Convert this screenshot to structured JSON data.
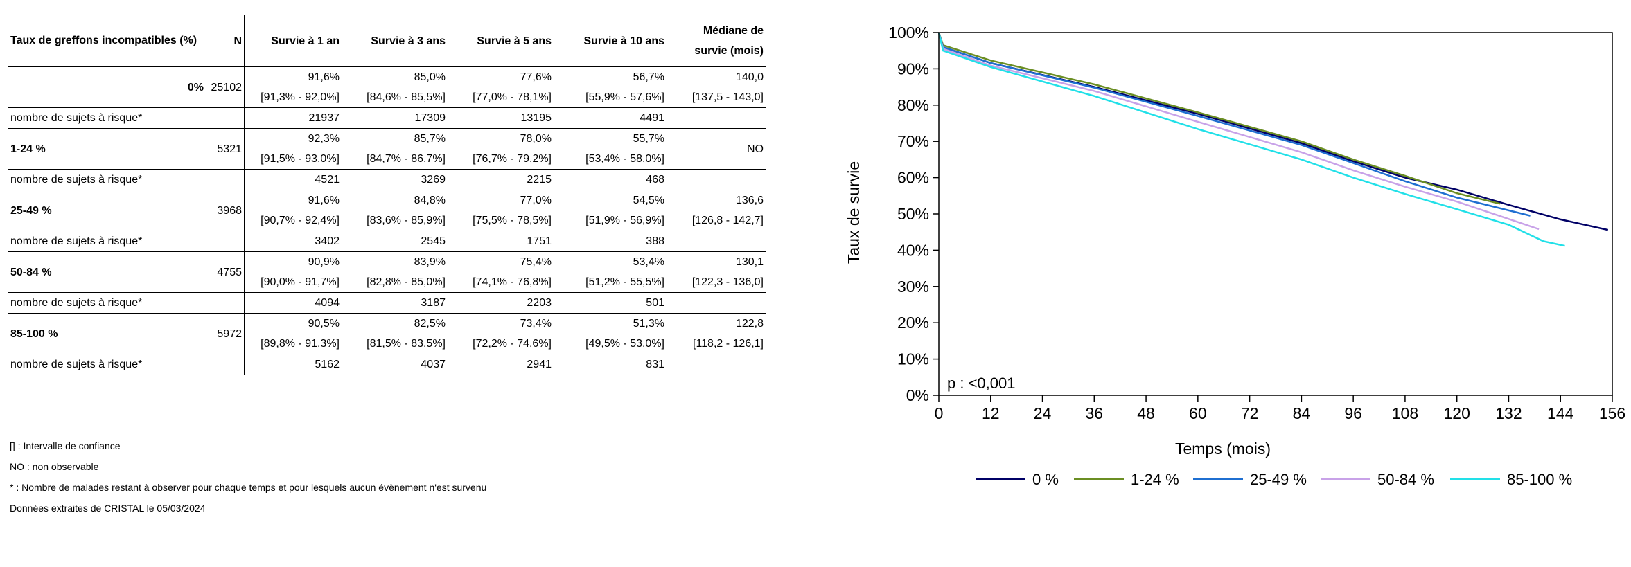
{
  "table": {
    "headers": {
      "group": "Taux de greffons incompatibles (%)",
      "n": "N",
      "s1": "Survie à 1 an",
      "s3": "Survie à 3 ans",
      "s5": "Survie à 5 ans",
      "s10": "Survie à 10 ans",
      "median_l1": "Médiane de",
      "median_l2": "survie (mois)"
    },
    "risk_label": "nombre de sujets à risque*",
    "groups": [
      {
        "label": "0%",
        "n": "25102",
        "s1": "91,6%",
        "s1_ci": "[91,3% - 92,0%]",
        "s3": "85,0%",
        "s3_ci": "[84,6% - 85,5%]",
        "s5": "77,6%",
        "s5_ci": "[77,0% - 78,1%]",
        "s10": "56,7%",
        "s10_ci": "[55,9% - 57,6%]",
        "median": "140,0",
        "median_ci": "[137,5 - 143,0]",
        "risk": [
          "21937",
          "17309",
          "13195",
          "4491"
        ]
      },
      {
        "label": "1-24 %",
        "n": "5321",
        "s1": "92,3%",
        "s1_ci": "[91,5% - 93,0%]",
        "s3": "85,7%",
        "s3_ci": "[84,7% - 86,7%]",
        "s5": "78,0%",
        "s5_ci": "[76,7% - 79,2%]",
        "s10": "55,7%",
        "s10_ci": "[53,4% - 58,0%]",
        "median": "NO",
        "median_ci": "",
        "risk": [
          "4521",
          "3269",
          "2215",
          "468"
        ]
      },
      {
        "label": "25-49 %",
        "n": "3968",
        "s1": "91,6%",
        "s1_ci": "[90,7% - 92,4%]",
        "s3": "84,8%",
        "s3_ci": "[83,6% - 85,9%]",
        "s5": "77,0%",
        "s5_ci": "[75,5% - 78,5%]",
        "s10": "54,5%",
        "s10_ci": "[51,9% - 56,9%]",
        "median": "136,6",
        "median_ci": "[126,8 - 142,7]",
        "risk": [
          "3402",
          "2545",
          "1751",
          "388"
        ]
      },
      {
        "label": "50-84 %",
        "n": "4755",
        "s1": "90,9%",
        "s1_ci": "[90,0% - 91,7%]",
        "s3": "83,9%",
        "s3_ci": "[82,8% - 85,0%]",
        "s5": "75,4%",
        "s5_ci": "[74,1% - 76,8%]",
        "s10": "53,4%",
        "s10_ci": "[51,2% - 55,5%]",
        "median": "130,1",
        "median_ci": "[122,3 - 136,0]",
        "risk": [
          "4094",
          "3187",
          "2203",
          "501"
        ]
      },
      {
        "label": "85-100 %",
        "n": "5972",
        "s1": "90,5%",
        "s1_ci": "[89,8% - 91,3%]",
        "s3": "82,5%",
        "s3_ci": "[81,5% - 83,5%]",
        "s5": "73,4%",
        "s5_ci": "[72,2% - 74,6%]",
        "s10": "51,3%",
        "s10_ci": "[49,5% - 53,0%]",
        "median": "122,8",
        "median_ci": "[118,2 - 126,1]",
        "risk": [
          "5162",
          "4037",
          "2941",
          "831"
        ]
      }
    ]
  },
  "footnotes": [
    "[] : Intervalle de confiance",
    "NO : non observable",
    "* : Nombre de malades restant à observer pour chaque temps et pour lesquels aucun évènement n'est survenu",
    "Données extraites de CRISTAL le 05/03/2024"
  ],
  "chart_data": {
    "type": "line",
    "xlabel": "Temps (mois)",
    "ylabel": "Taux de survie",
    "xlim": [
      0,
      156
    ],
    "ylim": [
      0,
      100
    ],
    "x_ticks": [
      0,
      12,
      24,
      36,
      48,
      60,
      72,
      84,
      96,
      108,
      120,
      132,
      144,
      156
    ],
    "y_ticks": [
      0,
      10,
      20,
      30,
      40,
      50,
      60,
      70,
      80,
      90,
      100
    ],
    "y_tick_labels": [
      "0%",
      "10%",
      "20%",
      "30%",
      "40%",
      "50%",
      "60%",
      "70%",
      "80%",
      "90%",
      "100%"
    ],
    "annotation": "p : <0,001",
    "legend_position": "bottom",
    "series": [
      {
        "name": "0 %",
        "color": "#000066",
        "x": [
          0,
          1,
          12,
          36,
          60,
          84,
          96,
          108,
          120,
          132,
          144,
          155
        ],
        "y": [
          100,
          96,
          91.6,
          85.0,
          77.6,
          69.5,
          64.5,
          60.0,
          56.7,
          52.5,
          48.5,
          45.6
        ]
      },
      {
        "name": "1-24 %",
        "color": "#6b8e23",
        "x": [
          0,
          1,
          12,
          36,
          60,
          84,
          96,
          108,
          120,
          130
        ],
        "y": [
          100,
          96.5,
          92.3,
          85.7,
          78.0,
          70.0,
          65.0,
          60.5,
          55.7,
          52.8
        ]
      },
      {
        "name": "25-49 %",
        "color": "#1f6fd1",
        "x": [
          0,
          1,
          12,
          36,
          60,
          84,
          96,
          108,
          120,
          137
        ],
        "y": [
          100,
          96,
          91.6,
          84.8,
          77.0,
          69.0,
          64.0,
          59.0,
          54.5,
          49.5
        ]
      },
      {
        "name": "50-84 %",
        "color": "#c8a2e8",
        "x": [
          0,
          1,
          12,
          36,
          60,
          84,
          96,
          108,
          120,
          136,
          139
        ],
        "y": [
          100,
          95.5,
          90.9,
          83.9,
          75.4,
          67.0,
          62.0,
          57.5,
          53.4,
          47.0,
          45.8
        ]
      },
      {
        "name": "85-100 %",
        "color": "#22e0e8",
        "x": [
          0,
          1,
          12,
          36,
          60,
          84,
          96,
          108,
          120,
          132,
          140,
          145
        ],
        "y": [
          100,
          95,
          90.5,
          82.5,
          73.4,
          65.0,
          60.0,
          55.5,
          51.3,
          47.0,
          42.5,
          41.2
        ]
      }
    ]
  }
}
